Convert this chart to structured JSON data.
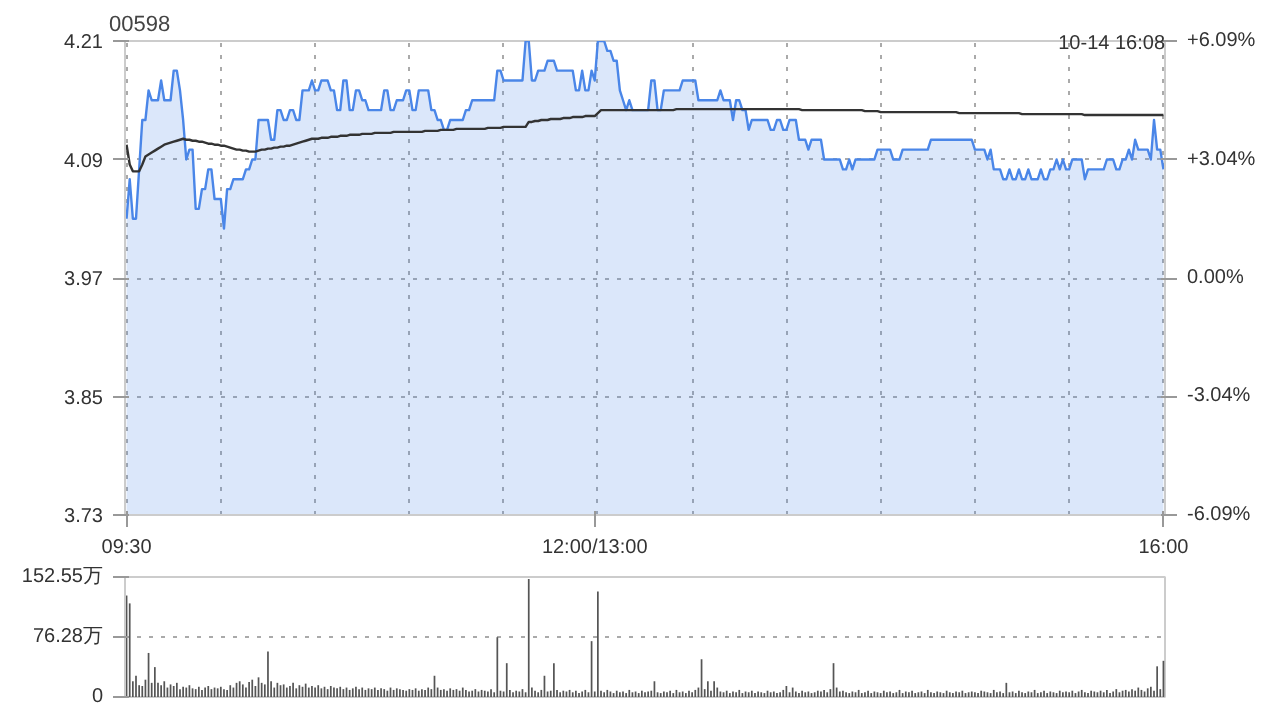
{
  "chart_data": [
    {
      "type": "line",
      "title": "00598",
      "annotations": [
        "10-14 16:08"
      ],
      "grid": true,
      "categories": [
        "09:30",
        null,
        null,
        null,
        null,
        null,
        null,
        null,
        null,
        null,
        null,
        null,
        null,
        null,
        null,
        null,
        null,
        null,
        null,
        null,
        null,
        null,
        null,
        null,
        null,
        null,
        null,
        null,
        null,
        null,
        null,
        null,
        null,
        null,
        null,
        null,
        null,
        null,
        null,
        null,
        null,
        null,
        null,
        null,
        null,
        null,
        null,
        null,
        null,
        null,
        null,
        null,
        null,
        null,
        null,
        null,
        null,
        null,
        null,
        null,
        null,
        null,
        null,
        null,
        null,
        null,
        null,
        null,
        null,
        null,
        null,
        null,
        null,
        null,
        null,
        null,
        null,
        null,
        null,
        null,
        null,
        null,
        null,
        null,
        null,
        null,
        null,
        null,
        null,
        null,
        null,
        null,
        null,
        null,
        null,
        null,
        null,
        null,
        null,
        null,
        null,
        null,
        null,
        null,
        null,
        null,
        null,
        null,
        null,
        null,
        null,
        null,
        null,
        null,
        null,
        null,
        null,
        null,
        null,
        null,
        null,
        null,
        null,
        null,
        null,
        null,
        null,
        null,
        null,
        null,
        null,
        null,
        null,
        null,
        null,
        null,
        null,
        null,
        null,
        null,
        null,
        null,
        null,
        null,
        null,
        null,
        null,
        null,
        null,
        "12:00/13:00",
        null,
        null,
        null,
        null,
        null,
        null,
        null,
        null,
        null,
        null,
        null,
        null,
        null,
        null,
        null,
        null,
        null,
        null,
        null,
        null,
        null,
        null,
        null,
        null,
        null,
        null,
        null,
        null,
        null,
        null,
        null,
        null,
        null,
        null,
        null,
        null,
        null,
        null,
        null,
        null,
        null,
        null,
        null,
        null,
        null,
        null,
        null,
        null,
        null,
        null,
        null,
        null,
        null,
        null,
        null,
        null,
        null,
        null,
        null,
        null,
        null,
        null,
        null,
        null,
        null,
        null,
        null,
        null,
        null,
        null,
        null,
        null,
        null,
        null,
        null,
        null,
        null,
        null,
        null,
        null,
        null,
        null,
        null,
        null,
        null,
        null,
        null,
        null,
        null,
        null,
        null,
        null,
        null,
        null,
        null,
        null,
        null,
        null,
        null,
        null,
        null,
        null,
        null,
        null,
        null,
        null,
        null,
        null,
        null,
        null,
        null,
        null,
        null,
        null,
        null,
        null,
        null,
        null,
        null,
        null,
        null,
        null,
        null,
        null,
        null,
        null,
        null,
        null,
        null,
        null,
        null,
        null,
        null,
        null,
        null,
        null,
        null,
        null,
        null,
        null,
        null,
        null,
        null,
        null,
        null,
        null,
        null,
        null,
        null,
        null,
        null,
        null,
        null,
        null,
        null,
        null,
        null,
        null,
        null,
        null,
        null,
        null,
        null,
        null,
        null,
        null,
        null,
        null,
        null,
        null,
        null,
        null,
        null,
        null,
        null,
        null,
        null,
        null,
        null,
        null,
        "16:00"
      ],
      "ylim": [
        3.73,
        4.21
      ],
      "yticks": [
        3.73,
        3.85,
        3.97,
        4.09,
        4.21
      ],
      "y2lim": [
        -6.09,
        6.09
      ],
      "y2ticks": [
        {
          "value": -6.09,
          "label": "-6.09%"
        },
        {
          "value": -3.04,
          "label": "-3.04%"
        },
        {
          "value": 0,
          "label": "0.00%"
        },
        {
          "value": 3.04,
          "label": "+3.04%"
        },
        {
          "value": 6.09,
          "label": "+6.09%"
        }
      ],
      "series": [
        {
          "type": "area",
          "color": "#4a86e8",
          "values": [
            4.03,
            4.07,
            4.03,
            4.03,
            4.08,
            4.13,
            4.13,
            4.16,
            4.15,
            4.15,
            4.15,
            4.17,
            4.15,
            4.15,
            4.15,
            4.18,
            4.18,
            4.16,
            4.13,
            4.09,
            4.1,
            4.1,
            4.04,
            4.04,
            4.06,
            4.06,
            4.08,
            4.08,
            4.05,
            4.05,
            4.05,
            4.02,
            4.06,
            4.06,
            4.07,
            4.07,
            4.07,
            4.07,
            4.08,
            4.08,
            4.09,
            4.09,
            4.13,
            4.13,
            4.13,
            4.13,
            4.11,
            4.11,
            4.14,
            4.14,
            4.13,
            4.13,
            4.14,
            4.14,
            4.13,
            4.13,
            4.16,
            4.16,
            4.16,
            4.17,
            4.16,
            4.16,
            4.17,
            4.17,
            4.17,
            4.16,
            4.16,
            4.14,
            4.14,
            4.17,
            4.17,
            4.14,
            4.14,
            4.16,
            4.16,
            4.15,
            4.15,
            4.14,
            4.14,
            4.14,
            4.14,
            4.14,
            4.16,
            4.16,
            4.14,
            4.14,
            4.15,
            4.15,
            4.15,
            4.16,
            4.16,
            4.14,
            4.14,
            4.16,
            4.16,
            4.16,
            4.16,
            4.14,
            4.14,
            4.13,
            4.13,
            4.12,
            4.12,
            4.13,
            4.13,
            4.13,
            4.13,
            4.13,
            4.14,
            4.14,
            4.15,
            4.15,
            4.15,
            4.15,
            4.15,
            4.15,
            4.15,
            4.15,
            4.18,
            4.18,
            4.17,
            4.17,
            4.17,
            4.17,
            4.17,
            4.17,
            4.17,
            4.21,
            4.21,
            4.17,
            4.17,
            4.18,
            4.18,
            4.18,
            4.19,
            4.19,
            4.19,
            4.18,
            4.18,
            4.18,
            4.18,
            4.18,
            4.18,
            4.16,
            4.16,
            4.18,
            4.16,
            4.16,
            4.18,
            4.17,
            4.21,
            4.21,
            4.21,
            4.2,
            4.2,
            4.19,
            4.19,
            4.16,
            4.15,
            4.14,
            4.15,
            4.14,
            4.14,
            4.14,
            4.14,
            4.14,
            4.14,
            4.17,
            4.17,
            4.14,
            4.14,
            4.16,
            4.16,
            4.16,
            4.16,
            4.16,
            4.16,
            4.17,
            4.17,
            4.17,
            4.17,
            4.17,
            4.15,
            4.15,
            4.15,
            4.15,
            4.15,
            4.15,
            4.15,
            4.16,
            4.15,
            4.15,
            4.15,
            4.13,
            4.15,
            4.15,
            4.14,
            4.14,
            4.12,
            4.13,
            4.13,
            4.13,
            4.13,
            4.13,
            4.13,
            4.12,
            4.12,
            4.13,
            4.13,
            4.12,
            4.12,
            4.13,
            4.13,
            4.13,
            4.11,
            4.11,
            4.11,
            4.1,
            4.11,
            4.11,
            4.11,
            4.11,
            4.09,
            4.09,
            4.09,
            4.09,
            4.09,
            4.09,
            4.08,
            4.08,
            4.09,
            4.08,
            4.09,
            4.09,
            4.09,
            4.09,
            4.09,
            4.09,
            4.09,
            4.1,
            4.1,
            4.1,
            4.1,
            4.1,
            4.09,
            4.09,
            4.09,
            4.1,
            4.1,
            4.1,
            4.1,
            4.1,
            4.1,
            4.1,
            4.1,
            4.1,
            4.11,
            4.11,
            4.11,
            4.11,
            4.11,
            4.11,
            4.11,
            4.11,
            4.11,
            4.11,
            4.11,
            4.11,
            4.11,
            4.11,
            4.1,
            4.1,
            4.1,
            4.1,
            4.09,
            4.1,
            4.08,
            4.08,
            4.08,
            4.07,
            4.07,
            4.08,
            4.07,
            4.07,
            4.08,
            4.07,
            4.07,
            4.08,
            4.07,
            4.07,
            4.07,
            4.08,
            4.07,
            4.07,
            4.08,
            4.08,
            4.09,
            4.08,
            4.09,
            4.08,
            4.08,
            4.09,
            4.09,
            4.09,
            4.09,
            4.07,
            4.08,
            4.08,
            4.08,
            4.08,
            4.08,
            4.08,
            4.09,
            4.09,
            4.09,
            4.08,
            4.08,
            4.09,
            4.09,
            4.1,
            4.09,
            4.11,
            4.1,
            4.1,
            4.1,
            4.1,
            4.09,
            4.13,
            4.1,
            4.1,
            4.08
          ]
        },
        {
          "type": "line",
          "color": "#333333",
          "values": [
            4.105,
            4.085,
            4.078,
            4.078,
            4.078,
            4.085,
            4.093,
            4.095,
            4.097,
            4.099,
            4.101,
            4.103,
            4.105,
            4.106,
            4.107,
            4.108,
            4.109,
            4.11,
            4.111,
            4.11,
            4.11,
            4.109,
            4.109,
            4.108,
            4.108,
            4.107,
            4.106,
            4.106,
            4.105,
            4.105,
            4.104,
            4.104,
            4.103,
            4.102,
            4.101,
            4.1,
            4.1,
            4.099,
            4.099,
            4.098,
            4.098,
            4.098,
            4.099,
            4.1,
            4.1,
            4.101,
            4.101,
            4.102,
            4.102,
            4.103,
            4.103,
            4.104,
            4.104,
            4.105,
            4.106,
            4.107,
            4.108,
            4.109,
            4.11,
            4.111,
            4.111,
            4.111,
            4.112,
            4.112,
            4.112,
            4.113,
            4.113,
            4.113,
            4.114,
            4.114,
            4.114,
            4.115,
            4.115,
            4.115,
            4.115,
            4.116,
            4.116,
            4.116,
            4.116,
            4.117,
            4.117,
            4.117,
            4.117,
            4.117,
            4.117,
            4.118,
            4.118,
            4.118,
            4.118,
            4.118,
            4.118,
            4.118,
            4.118,
            4.118,
            4.118,
            4.119,
            4.119,
            4.119,
            4.119,
            4.119,
            4.12,
            4.12,
            4.12,
            4.12,
            4.12,
            4.121,
            4.121,
            4.121,
            4.121,
            4.121,
            4.121,
            4.121,
            4.121,
            4.121,
            4.121,
            4.122,
            4.122,
            4.122,
            4.122,
            4.122,
            4.123,
            4.123,
            4.123,
            4.123,
            4.123,
            4.123,
            4.123,
            4.123,
            4.128,
            4.128,
            4.129,
            4.129,
            4.13,
            4.13,
            4.13,
            4.131,
            4.131,
            4.131,
            4.131,
            4.132,
            4.132,
            4.132,
            4.133,
            4.133,
            4.133,
            4.133,
            4.134,
            4.134,
            4.134,
            4.134,
            4.137,
            4.14,
            4.14,
            4.14,
            4.14,
            4.14,
            4.14,
            4.14,
            4.14,
            4.14,
            4.14,
            4.14,
            4.14,
            4.14,
            4.14,
            4.14,
            4.14,
            4.14,
            4.14,
            4.14,
            4.14,
            4.14,
            4.14,
            4.14,
            4.14,
            4.141,
            4.141,
            4.141,
            4.141,
            4.141,
            4.141,
            4.141,
            4.141,
            4.141,
            4.141,
            4.141,
            4.141,
            4.141,
            4.141,
            4.141,
            4.141,
            4.141,
            4.141,
            4.141,
            4.141,
            4.141,
            4.141,
            4.141,
            4.141,
            4.141,
            4.141,
            4.141,
            4.141,
            4.141,
            4.141,
            4.141,
            4.141,
            4.141,
            4.141,
            4.141,
            4.141,
            4.141,
            4.141,
            4.141,
            4.141,
            4.14,
            4.14,
            4.14,
            4.14,
            4.14,
            4.14,
            4.14,
            4.14,
            4.14,
            4.14,
            4.14,
            4.14,
            4.14,
            4.14,
            4.14,
            4.14,
            4.14,
            4.14,
            4.14,
            4.14,
            4.139,
            4.139,
            4.139,
            4.139,
            4.139,
            4.138,
            4.138,
            4.138,
            4.138,
            4.138,
            4.138,
            4.138,
            4.138,
            4.138,
            4.138,
            4.138,
            4.138,
            4.138,
            4.138,
            4.138,
            4.138,
            4.138,
            4.138,
            4.138,
            4.138,
            4.138,
            4.138,
            4.138,
            4.138,
            4.138,
            4.137,
            4.137,
            4.137,
            4.137,
            4.137,
            4.137,
            4.137,
            4.137,
            4.137,
            4.137,
            4.137,
            4.137,
            4.137,
            4.137,
            4.137,
            4.137,
            4.137,
            4.137,
            4.137,
            4.137,
            4.136,
            4.136,
            4.136,
            4.136,
            4.136,
            4.136,
            4.136,
            4.136,
            4.136,
            4.136,
            4.136,
            4.136,
            4.136,
            4.136,
            4.136,
            4.136,
            4.136,
            4.136,
            4.136,
            4.136,
            4.135,
            4.135,
            4.135,
            4.135,
            4.135,
            4.135,
            4.135,
            4.135,
            4.135,
            4.135,
            4.135,
            4.135,
            4.135,
            4.135,
            4.135,
            4.135,
            4.135,
            4.135,
            4.135,
            4.135,
            4.135,
            4.135,
            4.135,
            4.135,
            4.135,
            4.135
          ]
        }
      ]
    },
    {
      "type": "bar",
      "tick_labels": "y",
      "grid": "y",
      "categories": [
        null,
        null,
        null,
        null,
        null,
        null,
        null,
        null,
        null,
        null,
        null,
        null,
        null,
        null,
        null,
        null,
        null,
        null,
        null,
        null,
        null,
        null,
        null,
        null,
        null,
        null,
        null,
        null,
        null,
        null,
        null,
        null,
        null,
        null,
        null,
        null,
        null,
        null,
        null,
        null,
        null,
        null,
        null,
        null,
        null,
        null,
        null,
        null,
        null,
        null,
        null,
        null,
        null,
        null,
        null,
        null,
        null,
        null,
        null,
        null,
        null,
        null,
        null,
        null,
        null,
        null,
        null,
        null,
        null,
        null,
        null,
        null,
        null,
        null,
        null,
        null,
        null,
        null,
        null,
        null,
        null,
        null,
        null,
        null,
        null,
        null,
        null,
        null,
        null,
        null,
        null,
        null,
        null,
        null,
        null,
        null,
        null,
        null,
        null,
        null,
        null,
        null,
        null,
        null,
        null,
        null,
        null,
        null,
        null,
        null,
        null,
        null,
        null,
        null,
        null,
        null,
        null,
        null,
        null,
        null,
        null,
        null,
        null,
        null,
        null,
        null,
        null,
        null,
        null,
        null,
        null,
        null,
        null,
        null,
        null,
        null,
        null,
        null,
        null,
        null,
        null,
        null,
        null,
        null,
        null,
        null,
        null,
        null,
        null,
        null,
        null,
        null,
        null,
        null,
        null,
        null,
        null,
        null,
        null,
        null,
        null,
        null,
        null,
        null,
        null,
        null,
        null,
        null,
        null,
        null,
        null,
        null,
        null,
        null,
        null,
        null,
        null,
        null,
        null,
        null,
        null,
        null,
        null,
        null,
        null,
        null,
        null,
        null,
        null,
        null,
        null,
        null,
        null,
        null,
        null,
        null,
        null,
        null,
        null,
        null,
        null,
        null,
        null,
        null,
        null,
        null,
        null,
        null,
        null,
        null,
        null,
        null,
        null,
        null,
        null,
        null,
        null,
        null,
        null,
        null,
        null,
        null,
        null,
        null,
        null,
        null,
        null,
        null,
        null,
        null,
        null,
        null,
        null,
        null,
        null,
        null,
        null,
        null,
        null,
        null,
        null,
        null,
        null,
        null,
        null,
        null,
        null,
        null,
        null,
        null,
        null,
        null,
        null,
        null,
        null,
        null,
        null,
        null,
        null,
        null,
        null,
        null,
        null,
        null,
        null,
        null,
        null,
        null,
        null,
        null,
        null,
        null,
        null,
        null,
        null,
        null,
        null,
        null,
        null,
        null,
        null,
        null,
        null,
        null,
        null,
        null,
        null,
        null,
        null,
        null,
        null,
        null,
        null,
        null,
        null,
        null,
        null,
        null,
        null,
        null,
        null,
        null,
        null,
        null,
        null,
        null,
        null,
        null,
        null,
        null,
        null,
        null,
        null,
        null,
        null,
        null,
        null,
        null,
        null,
        null,
        null,
        null,
        null,
        null,
        null,
        null,
        null,
        null,
        null,
        null,
        null
      ],
      "ylim": [
        0,
        152.55
      ],
      "yticks": [
        0,
        {
          "value": 76.28,
          "label": "76.28万"
        },
        {
          "value": 152.55,
          "label": "152.55万"
        }
      ],
      "color": "#555555",
      "values": [
        129,
        119,
        20,
        27,
        15,
        14,
        22,
        56,
        18,
        38,
        18,
        15,
        20,
        12,
        16,
        14,
        18,
        10,
        13,
        12,
        15,
        11,
        10,
        13,
        9,
        12,
        14,
        10,
        12,
        11,
        13,
        10,
        9,
        15,
        12,
        18,
        20,
        16,
        12,
        19,
        22,
        14,
        25,
        18,
        16,
        58,
        20,
        12,
        18,
        15,
        16,
        12,
        14,
        18,
        11,
        15,
        13,
        17,
        12,
        14,
        12,
        15,
        11,
        13,
        10,
        14,
        12,
        11,
        13,
        10,
        12,
        9,
        11,
        13,
        10,
        12,
        9,
        11,
        10,
        12,
        9,
        11,
        10,
        8,
        12,
        9,
        11,
        10,
        9,
        8,
        10,
        9,
        11,
        8,
        10,
        9,
        12,
        10,
        27,
        12,
        9,
        10,
        8,
        11,
        9,
        10,
        8,
        12,
        9,
        7,
        8,
        10,
        7,
        9,
        8,
        7,
        10,
        6,
        76,
        8,
        7,
        43,
        9,
        6,
        8,
        7,
        10,
        6,
        150,
        12,
        8,
        6,
        9,
        27,
        7,
        8,
        43,
        9,
        6,
        8,
        7,
        9,
        6,
        8,
        5,
        7,
        9,
        6,
        71,
        7,
        134,
        8,
        6,
        9,
        7,
        5,
        8,
        6,
        7,
        5,
        9,
        6,
        7,
        5,
        8,
        6,
        7,
        8,
        20,
        6,
        5,
        7,
        6,
        8,
        5,
        9,
        6,
        7,
        5,
        8,
        6,
        9,
        12,
        48,
        10,
        20,
        8,
        20,
        12,
        7,
        6,
        8,
        5,
        7,
        6,
        9,
        5,
        7,
        6,
        8,
        5,
        7,
        6,
        5,
        8,
        6,
        7,
        5,
        6,
        9,
        14,
        6,
        12,
        7,
        5,
        8,
        6,
        7,
        5,
        6,
        8,
        7,
        9,
        6,
        10,
        43,
        12,
        7,
        8,
        6,
        5,
        7,
        6,
        9,
        5,
        6,
        8,
        5,
        7,
        6,
        5,
        8,
        6,
        7,
        5,
        6,
        9,
        5,
        7,
        6,
        8,
        5,
        6,
        7,
        5,
        9,
        6,
        5,
        7,
        6,
        5,
        8,
        6,
        5,
        7,
        6,
        8,
        5,
        6,
        7,
        6,
        5,
        8,
        7,
        6,
        5,
        9,
        6,
        7,
        5,
        18,
        6,
        7,
        5,
        8,
        6,
        5,
        7,
        6,
        9,
        5,
        6,
        8,
        5,
        7,
        6,
        5,
        8,
        6,
        7,
        6,
        8,
        5,
        7,
        9,
        6,
        5,
        8,
        7,
        6,
        8,
        6,
        9,
        5,
        7,
        10,
        6,
        8,
        9,
        7,
        10,
        8,
        12,
        9,
        7,
        11,
        13,
        8,
        39,
        10,
        46
      ]
    }
  ]
}
